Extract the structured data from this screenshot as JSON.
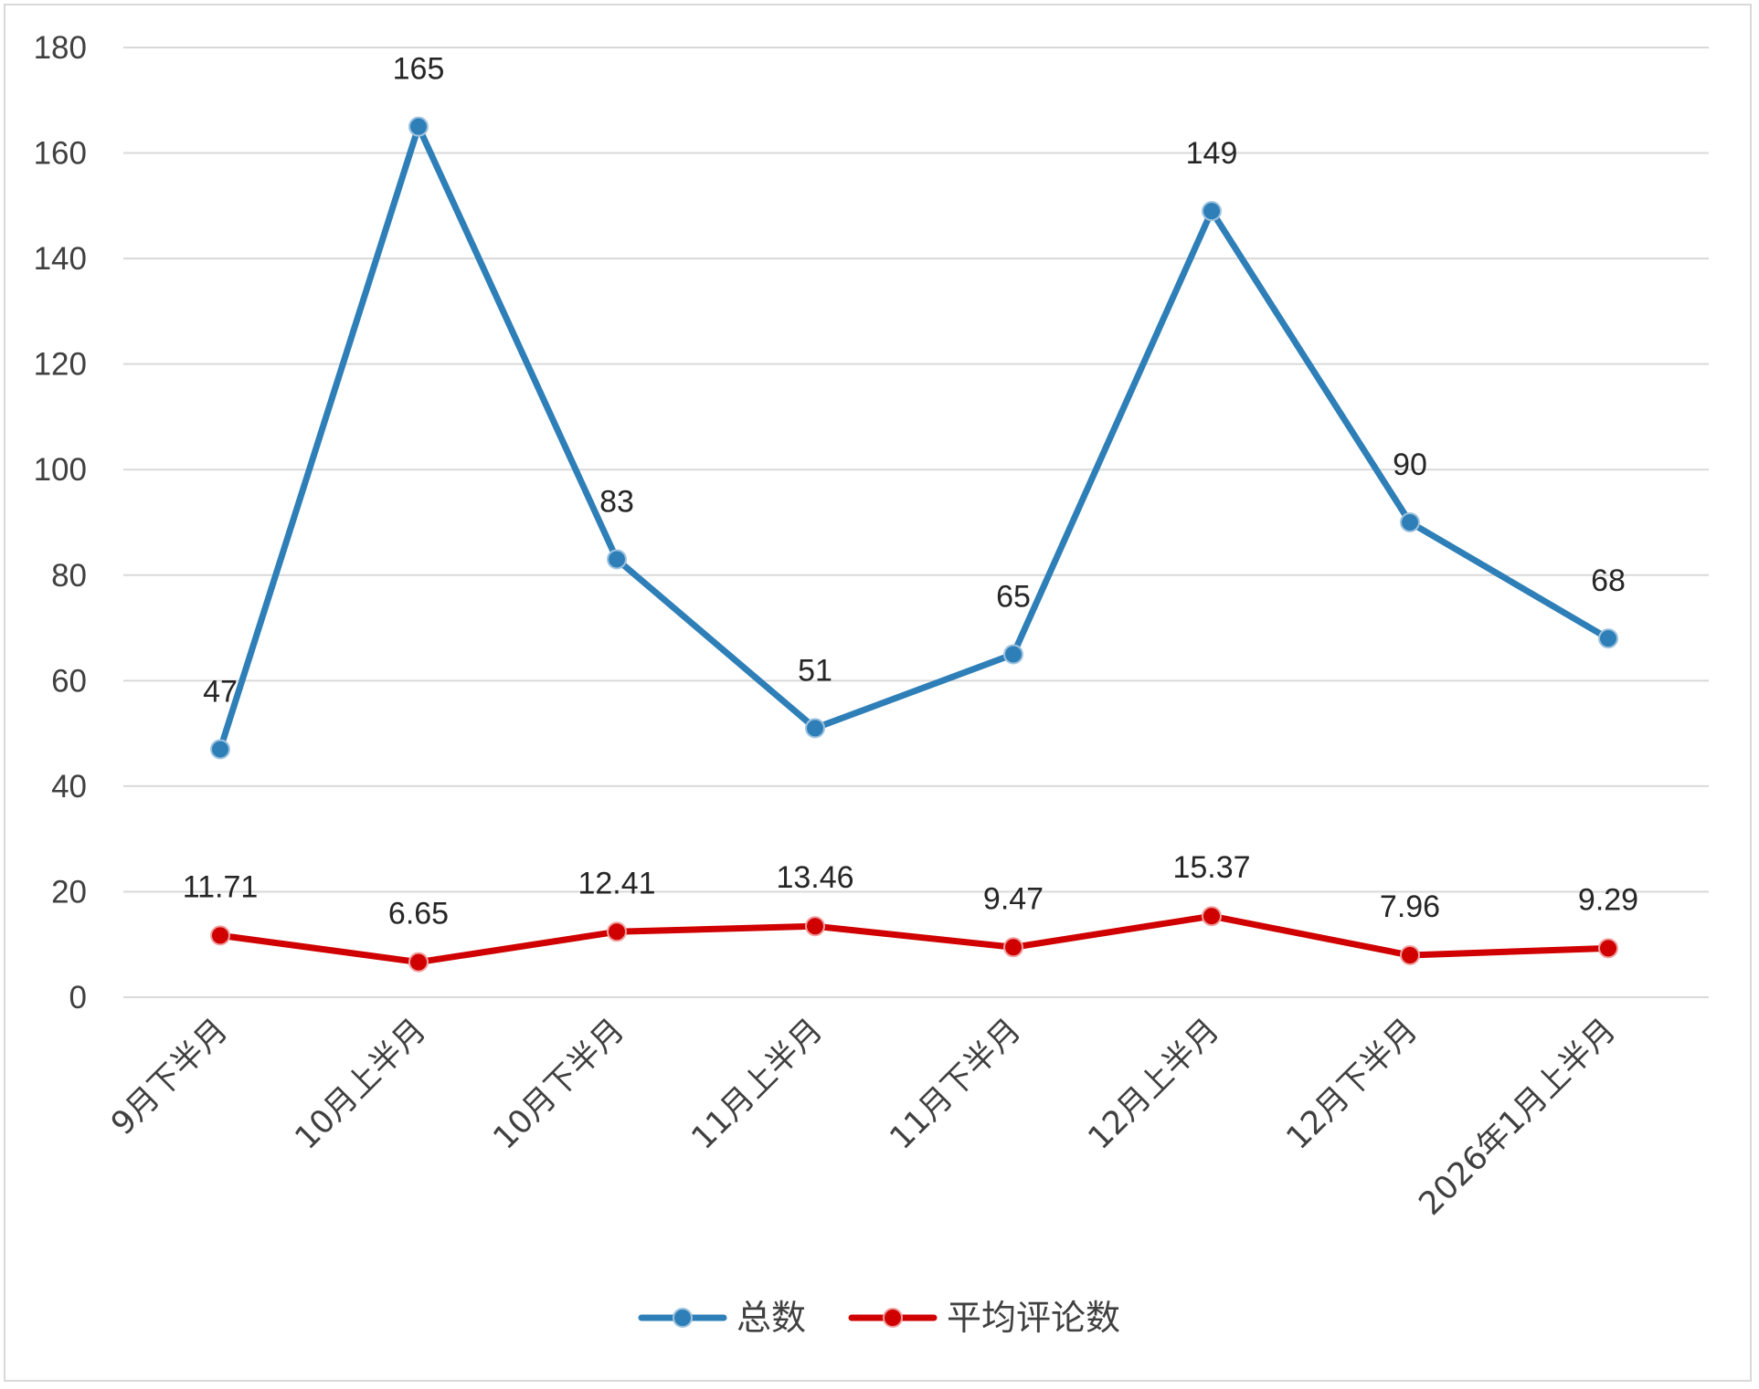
{
  "chart_data": {
    "type": "line",
    "categories": [
      "9月下半月",
      "10月上半月",
      "10月下半月",
      "11月上半月",
      "11月下半月",
      "12月上半月",
      "12月下半月",
      "2026年1月上半月"
    ],
    "series": [
      {
        "name": "总数",
        "values": [
          47,
          165,
          83,
          51,
          65,
          149,
          90,
          68
        ],
        "color": "#2e7fb8",
        "label_offset": "above"
      },
      {
        "name": "平均评论数",
        "values": [
          11.71,
          6.65,
          12.41,
          13.46,
          9.47,
          15.37,
          7.96,
          9.29
        ],
        "color": "#d00000",
        "label_offset": "above"
      }
    ],
    "ylim": [
      0,
      180
    ],
    "yticks": [
      0,
      20,
      40,
      60,
      80,
      100,
      120,
      140,
      160,
      180
    ],
    "grid": true,
    "legend": "bottom-center",
    "title": "",
    "xlabel": "",
    "ylabel": ""
  }
}
